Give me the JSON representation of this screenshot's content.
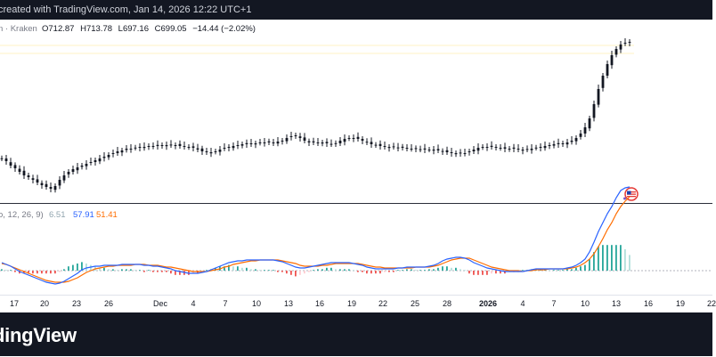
{
  "header": {
    "attribution": "created with TradingView.com, Jan 14, 2026 12:22 UTC+1"
  },
  "legend": {
    "symbol_exchange": "n · Kraken",
    "open": "O712.87",
    "high": "H713.78",
    "low": "L697.16",
    "close": "C699.05",
    "change": "−14.44 (−2.02%)"
  },
  "macd_legend": {
    "params": "o, 12, 26, 9)",
    "histogram": "6.51",
    "macd": "57.91",
    "signal": "51.41"
  },
  "xaxis": {
    "labels": [
      "17",
      "20",
      "23",
      "26",
      "Dec",
      "4",
      "7",
      "10",
      "13",
      "16",
      "19",
      "22",
      "25",
      "28",
      "2026",
      "4",
      "7",
      "10",
      "13",
      "16",
      "19",
      "22"
    ],
    "bold": [
      false,
      false,
      false,
      false,
      false,
      false,
      false,
      false,
      false,
      false,
      false,
      false,
      false,
      false,
      true,
      false,
      false,
      false,
      false,
      false,
      false,
      false
    ]
  },
  "footer": {
    "brand": "dingView"
  },
  "icons": {
    "flag": "us-flag-event-icon"
  },
  "colors": {
    "candle": "#131722",
    "macd_line": "#2962ff",
    "signal_line": "#ff6d00",
    "hist_pos_strong": "#26a69a",
    "hist_pos_weak": "#b2dfdb",
    "hist_neg_strong": "#ef5350",
    "hist_neg_weak": "#ffcdd2"
  },
  "chart_data": {
    "type": "candlestick",
    "series": [
      {
        "name": "price",
        "values": [
          178,
          181,
          186,
          189,
          193,
          197,
          199,
          202,
          205,
          208,
          210,
          212,
          209,
          202,
          197,
          193,
          190,
          188,
          186,
          184,
          182,
          180,
          178,
          176,
          174,
          172,
          170,
          169,
          167,
          167,
          166,
          165,
          165,
          164,
          164,
          164,
          163,
          163,
          163,
          163,
          164,
          164,
          165,
          166,
          168,
          170,
          171,
          171,
          170,
          168,
          166,
          165,
          164,
          163,
          162,
          162,
          161,
          161,
          160,
          160,
          160,
          160,
          159,
          158,
          155,
          153,
          152,
          155,
          158,
          160,
          160,
          160,
          160,
          161,
          162,
          161,
          158,
          156,
          155,
          155,
          156,
          158,
          160,
          162,
          163,
          164,
          165,
          165,
          165,
          166,
          166,
          166,
          167,
          167,
          168,
          168,
          168,
          168,
          169,
          170,
          171,
          172,
          172,
          172,
          172,
          170,
          168,
          166,
          165,
          165,
          165,
          165,
          166,
          167,
          167,
          167,
          168,
          168,
          168,
          167,
          166,
          165,
          164,
          163,
          162,
          162,
          161,
          160,
          158,
          155,
          150,
          143,
          133,
          117,
          100,
          85,
          72,
          62,
          55,
          50,
          48,
          47
        ]
      },
      {
        "name": "macd",
        "values": [
          295,
          297,
          299,
          302,
          305,
          307,
          309,
          311,
          313,
          315,
          317,
          318,
          319,
          318,
          316,
          313,
          310,
          307,
          303,
          301,
          300,
          299,
          299,
          298,
          298,
          298,
          298,
          297,
          297,
          297,
          297,
          297,
          298,
          298,
          299,
          299,
          300,
          301,
          302,
          304,
          305,
          306,
          307,
          307,
          307,
          306,
          305,
          303,
          301,
          299,
          297,
          295,
          294,
          293,
          293,
          292,
          292,
          292,
          292,
          292,
          292,
          292,
          293,
          294,
          296,
          298,
          300,
          301,
          301,
          300,
          299,
          298,
          297,
          296,
          295,
          295,
          295,
          295,
          295,
          296,
          297,
          298,
          300,
          301,
          302,
          302,
          302,
          302,
          302,
          301,
          301,
          300,
          300,
          300,
          300,
          300,
          299,
          298,
          296,
          293,
          291,
          290,
          289,
          289,
          290,
          292,
          295,
          297,
          299,
          301,
          302,
          303,
          304,
          305,
          305,
          305,
          305,
          305,
          304,
          303,
          302,
          302,
          302,
          302,
          302,
          302,
          302,
          301,
          300,
          298,
          295,
          291,
          283,
          272,
          260,
          250,
          240,
          232,
          222,
          214,
          211,
          210
        ]
      },
      {
        "name": "signal",
        "values": [
          296,
          297,
          299,
          301,
          303,
          305,
          307,
          309,
          311,
          313,
          315,
          316,
          317,
          317,
          317,
          316,
          314,
          312,
          309,
          306,
          304,
          302,
          301,
          300,
          299,
          299,
          298,
          298,
          298,
          298,
          297,
          297,
          297,
          298,
          298,
          298,
          299,
          300,
          300,
          301,
          302,
          303,
          304,
          305,
          305,
          305,
          305,
          304,
          303,
          302,
          300,
          299,
          297,
          296,
          295,
          294,
          293,
          293,
          292,
          292,
          292,
          292,
          292,
          293,
          294,
          295,
          296,
          298,
          299,
          299,
          299,
          299,
          298,
          298,
          297,
          296,
          296,
          296,
          296,
          296,
          296,
          297,
          298,
          299,
          300,
          300,
          301,
          301,
          301,
          301,
          301,
          301,
          301,
          300,
          300,
          300,
          300,
          299,
          298,
          296,
          294,
          292,
          291,
          290,
          290,
          290,
          292,
          294,
          296,
          298,
          300,
          301,
          302,
          303,
          304,
          304,
          304,
          305,
          304,
          304,
          303,
          303,
          303,
          302,
          302,
          302,
          302,
          302,
          301,
          300,
          298,
          295,
          291,
          285,
          277,
          268,
          258,
          250,
          240,
          232,
          226,
          221
        ]
      }
    ],
    "xlabel": "",
    "ylabel": ""
  }
}
